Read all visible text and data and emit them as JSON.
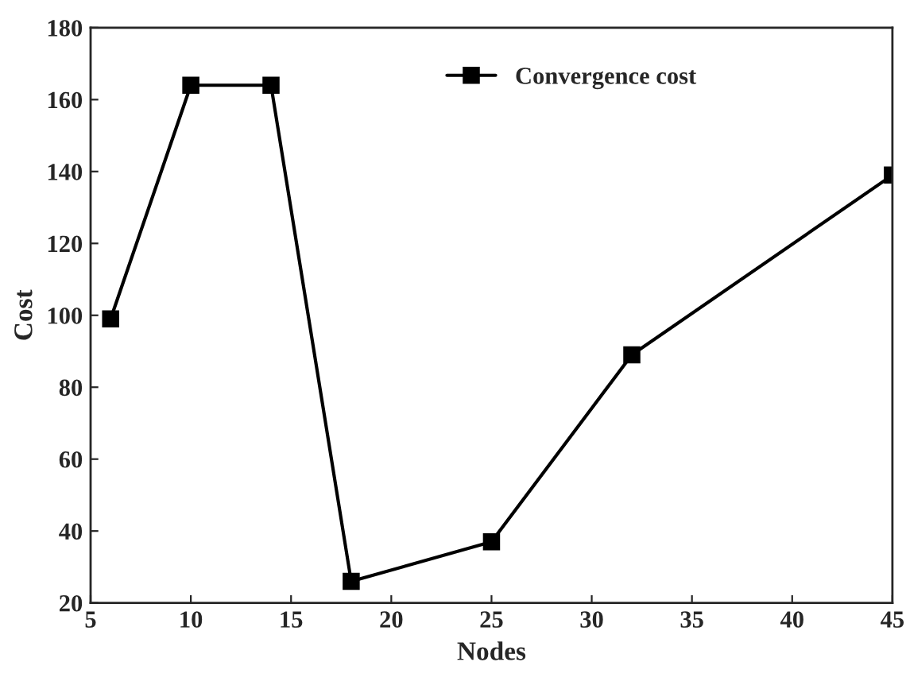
{
  "chart_data": {
    "type": "line",
    "xlabel": "Nodes",
    "ylabel": "Cost",
    "x": [
      6,
      10,
      14,
      18,
      25,
      32,
      45
    ],
    "series": [
      {
        "name": "Convergence cost",
        "color": "#000000",
        "values": [
          99,
          164,
          164,
          26,
          37,
          89,
          139
        ]
      }
    ],
    "xlim": [
      5,
      45
    ],
    "xticks": [
      5,
      10,
      15,
      20,
      25,
      30,
      35,
      40,
      45
    ],
    "ylim": [
      20,
      180
    ],
    "yticks": [
      20,
      40,
      60,
      80,
      100,
      120,
      140,
      160,
      180
    ],
    "marker": "square",
    "line_style": "solid",
    "legend": "top",
    "grid": false
  }
}
